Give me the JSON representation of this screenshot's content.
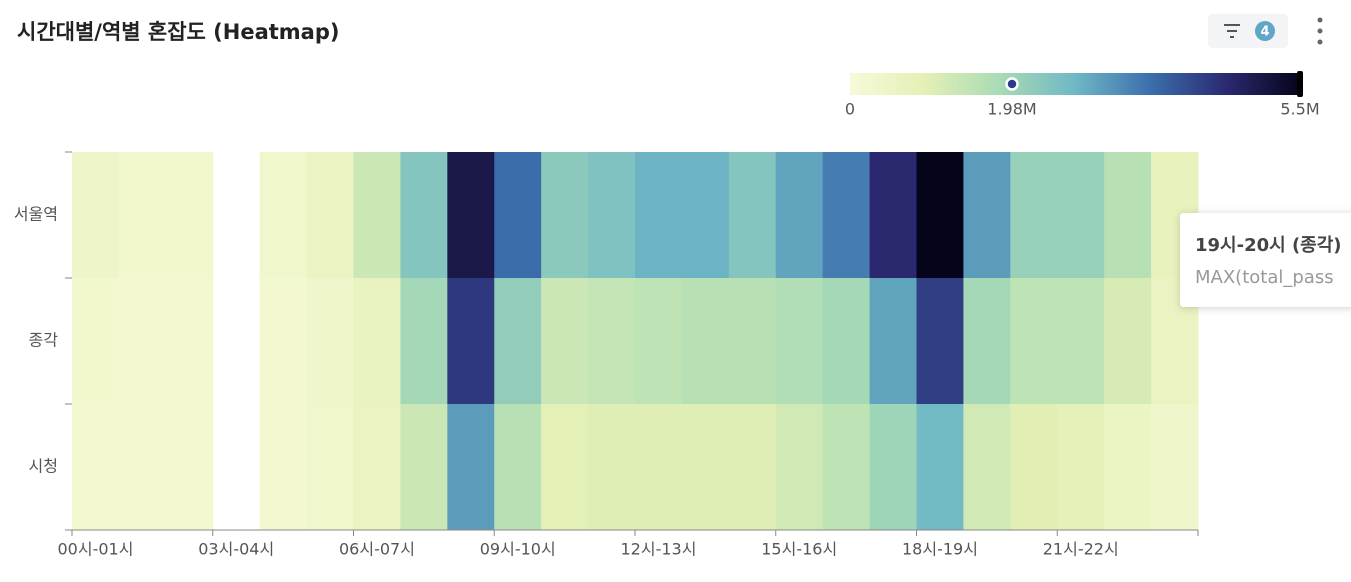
{
  "chart_data": {
    "type": "heatmap",
    "title": "시간대별/역별 혼잡도 (Heatmap)",
    "toolbar": {
      "filter_count": 4
    },
    "categories": [
      "00시-01시",
      null,
      null,
      "03시-04시",
      null,
      null,
      "06시-07시",
      null,
      null,
      "09시-10시",
      null,
      null,
      "12시-13시",
      null,
      null,
      "15시-16시",
      null,
      null,
      "18시-19시",
      null,
      null,
      "21시-22시",
      null,
      null
    ],
    "series": [
      {
        "name": "서울역",
        "values": [
          400000,
          250000,
          250000,
          null,
          300000,
          600000,
          1300000,
          2400000,
          5000000,
          3700000,
          2300000,
          2500000,
          2800000,
          2800000,
          2400000,
          3000000,
          3500000,
          4600000,
          5500000,
          3100000,
          2100000,
          2100000,
          1600000,
          700000
        ]
      },
      {
        "name": "종각",
        "values": [
          250000,
          200000,
          200000,
          null,
          200000,
          350000,
          650000,
          1900000,
          4400000,
          2200000,
          1300000,
          1400000,
          1500000,
          1600000,
          1600000,
          1700000,
          1900000,
          3000000,
          4300000,
          1900000,
          1500000,
          1500000,
          1100000,
          600000
        ]
      },
      {
        "name": "시청",
        "values": [
          200000,
          200000,
          200000,
          null,
          200000,
          300000,
          600000,
          1300000,
          3100000,
          1600000,
          900000,
          1000000,
          1000000,
          1000000,
          1000000,
          1200000,
          1500000,
          2000000,
          2700000,
          1200000,
          950000,
          850000,
          550000,
          350000
        ]
      }
    ],
    "colorscale": {
      "colors": [
        "#f7fad8",
        "#e3f0b5",
        "#a9dbb5",
        "#6fb8c5",
        "#3c6fac",
        "#2b2a72",
        "#05041a"
      ],
      "range": [
        0,
        5500000
      ],
      "ticks": [
        0,
        {
          "value": 1980000,
          "label": "1.98M"
        },
        {
          "value": 5500000,
          "label": "5.5M"
        }
      ]
    },
    "tooltip": {
      "title": "19시-20시 (종각)",
      "label": "MAX(total_pass"
    }
  }
}
